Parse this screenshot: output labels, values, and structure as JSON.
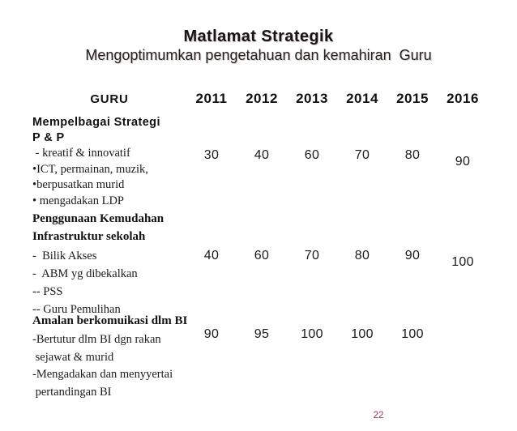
{
  "slide": {
    "title": "Matlamat Strategik",
    "subtitle": "Mengoptimumkan pengetahuan dan kemahiran  Guru",
    "page_number": "22"
  },
  "colors": {
    "background": "#ffffff",
    "text": "#1a1a1a",
    "page_number": "#993366"
  },
  "table": {
    "header": {
      "label": "GURU",
      "years": [
        "2011",
        "2012",
        "2013",
        "2014",
        "2015",
        "2016"
      ]
    },
    "rows": [
      {
        "title_lines": [
          "Mempelbagai Strategi",
          "P & P"
        ],
        "detail_lines": [
          " - kreatif & innovatif",
          "•ICT, permainan, muzik,",
          "•berpusatkan murid",
          "• mengadakan LDP"
        ],
        "values": [
          "30",
          "40",
          "60",
          "70",
          "80",
          "90"
        ]
      },
      {
        "title_lines": [
          "Penggunaan Kemudahan",
          "Infrastruktur sekolah"
        ],
        "detail_lines": [
          "-  Bilik Akses",
          "-  ABM yg dibekalkan",
          "-- PSS",
          "-- Guru Pemulihan"
        ],
        "values": [
          "40",
          "60",
          "70",
          "80",
          "90",
          "100"
        ]
      },
      {
        "title_lines": [
          "Amalan berkomuikasi dlm BI"
        ],
        "detail_lines": [
          "-Bertutur dlm BI dgn rakan",
          " sejawat & murid",
          "-Mengadakan dan menyyertai",
          " pertandingan BI"
        ],
        "values": [
          "90",
          "95",
          "100",
          "100",
          "100",
          ""
        ]
      }
    ]
  }
}
